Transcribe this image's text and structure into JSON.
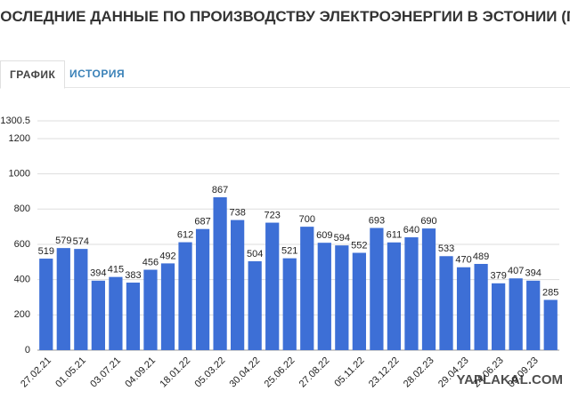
{
  "header": {
    "title": "ПОСЛЕДНИЕ ДАННЫЕ ПО ПРОИЗВОДСТВУ ЭЛЕКТРОЭНЕРГИИ В ЭСТОНИИ (ГВТ Ч)",
    "tabs": [
      "ГРАФИК",
      "ИСТОРИЯ"
    ]
  },
  "chart_data": {
    "type": "bar",
    "categories": [
      "27.02.21",
      null,
      "01.05.21",
      null,
      "03.07.21",
      null,
      "04.09.21",
      null,
      "18.01.22",
      null,
      "05.03.22",
      null,
      "30.04.22",
      null,
      "25.06.22",
      null,
      "27.08.22",
      null,
      "05.11.22",
      null,
      "23.12.22",
      null,
      "28.02.23",
      null,
      "29.04.23",
      null,
      "24.06.23",
      null,
      "09.09.23",
      null
    ],
    "values": [
      519,
      579,
      574,
      394,
      415,
      383,
      456,
      492,
      612,
      687,
      867,
      738,
      504,
      723,
      521,
      700,
      609,
      594,
      552,
      693,
      611,
      640,
      690,
      533,
      470,
      489,
      379,
      407,
      394,
      285
    ],
    "color": "#3d6fd6",
    "ylim": [
      0,
      1300.5
    ],
    "yticks": [
      0,
      200,
      400,
      600,
      800,
      1000,
      1200,
      1300.5
    ],
    "grid": true,
    "watermark": "YAPLAKAL.COM"
  }
}
